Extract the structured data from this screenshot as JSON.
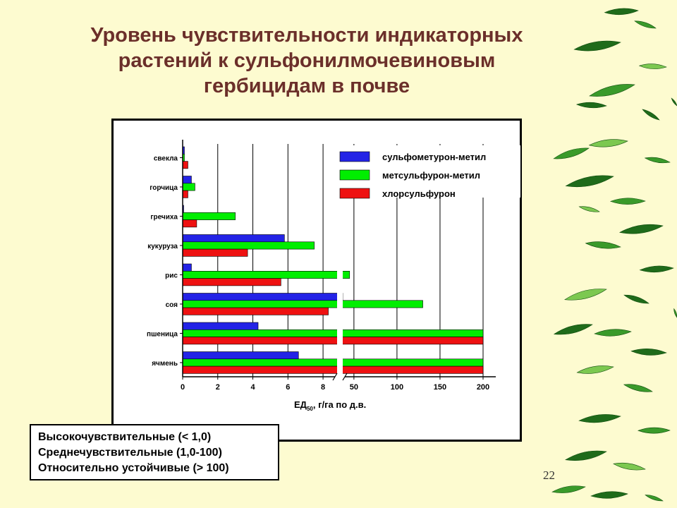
{
  "title_lines": [
    "Уровень чувствительности индикаторных",
    "растений к сульфонилмочевиновым",
    "гербицидам в почве"
  ],
  "legend_box": {
    "lines": [
      "Высокочувствительные (< 1,0)",
      "Среднечувствительные (1,0-100)",
      "Относительно устойчивые (> 100)"
    ]
  },
  "page_number": "22",
  "colors": {
    "background": "#fdfbd0",
    "title": "#6b2f2a",
    "blue": "#2323e6",
    "green": "#00ee00",
    "red": "#ee1111"
  },
  "chart_data": {
    "type": "bar",
    "orientation": "horizontal",
    "categories": [
      "свекла",
      "горчица",
      "гречиха",
      "кукуруза",
      "рис",
      "соя",
      "пшеница",
      "ячмень"
    ],
    "series": [
      {
        "name": "сульфометурон-метил",
        "color": "#2323e6",
        "values": [
          0.1,
          0.5,
          0.05,
          5.8,
          0.5,
          8.9,
          4.3,
          6.6
        ]
      },
      {
        "name": "метсульфурон-метил",
        "color": "#00ee00",
        "values": [
          0.1,
          0.7,
          3.0,
          7.5,
          45,
          130,
          200,
          200
        ]
      },
      {
        "name": "хлорсульфурон",
        "color": "#ee1111",
        "values": [
          0.3,
          0.3,
          0.8,
          3.7,
          5.6,
          8.3,
          200,
          200
        ]
      }
    ],
    "xlabel_main": "ЕД",
    "xlabel_sub": "50",
    "xlabel_rest": ", г/га по д.в.",
    "x_axis_break": true,
    "segments": [
      {
        "range": [
          0,
          8.8
        ],
        "ticks": [
          "0",
          "2",
          "4",
          "6",
          "8"
        ],
        "tick_values": [
          0,
          2,
          4,
          6,
          8
        ]
      },
      {
        "range": [
          37,
          200
        ],
        "ticks": [
          "50",
          "100",
          "150",
          "200"
        ],
        "tick_values": [
          50,
          100,
          150,
          200
        ]
      }
    ],
    "grid": true,
    "legend_position": "top-right"
  }
}
